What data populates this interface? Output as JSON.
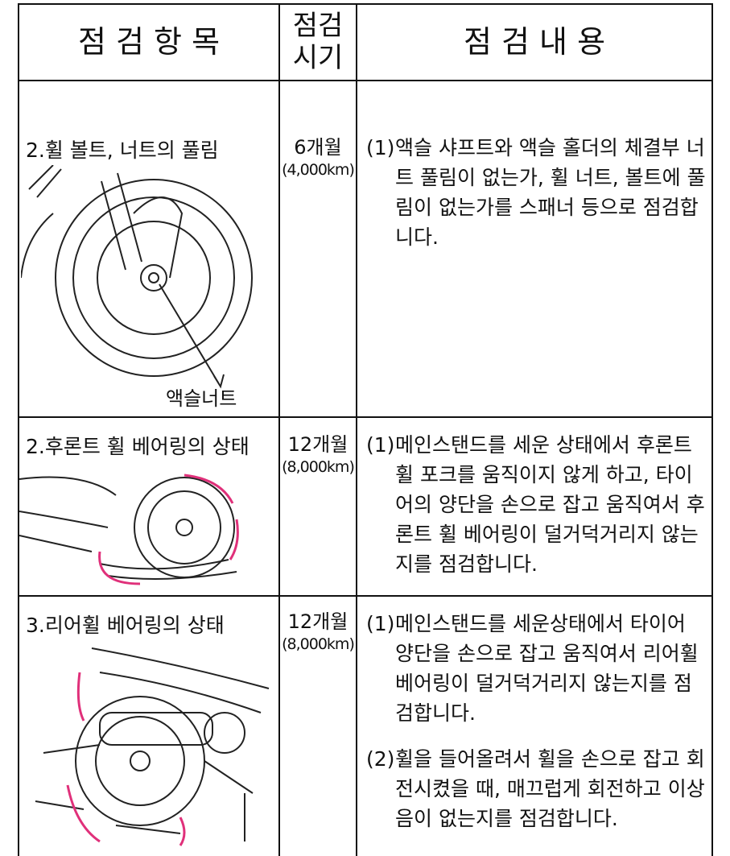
{
  "table": {
    "header": {
      "item": "점 검 항 목",
      "period": [
        "점검",
        "시기"
      ],
      "content": "점 검 내 용"
    },
    "rows": [
      {
        "item": "2.휠 볼트, 너트의 풀림",
        "period": [
          "6개월",
          "(4,000km)"
        ],
        "content": [
          {
            "marker": "(1)",
            "text": "액슬 샤프트와 액슬 홀더의 체결부 너트 풀림이 없는가, 휠 너트, 볼트에 풀림이 없는가를 스패너 등으로 점검합니다."
          }
        ],
        "annotation": "액슬너트"
      },
      {
        "item": "2.후론트 휠 베어링의 상태",
        "period": [
          "12개월",
          "(8,000km)"
        ],
        "content": [
          {
            "marker": "(1)",
            "text": "메인스탠드를 세운 상태에서 후론트 휠 포크를 움직이지 않게 하고, 타이어의 양단을 손으로 잡고 움직여서 후론트 휠 베어링이 덜거덕거리지 않는지를 점검합니다."
          }
        ]
      },
      {
        "item": "3.리어휠 베어링의 상태",
        "period": [
          "12개월",
          "(8,000km)"
        ],
        "content": [
          {
            "marker": "(1)",
            "text": "메인스탠드를 세운상태에서 타이어 양단을 손으로 잡고 움직여서 리어휠 베어링이 덜거덕거리지 않는지를 점검합니다."
          },
          {
            "marker": "(2)",
            "text": "휠을 들어올려서 휠을 손으로 잡고 회전시켰을 때, 매끄럽게 회전하고 이상음이 없는지를 점검합니다."
          }
        ]
      }
    ]
  }
}
